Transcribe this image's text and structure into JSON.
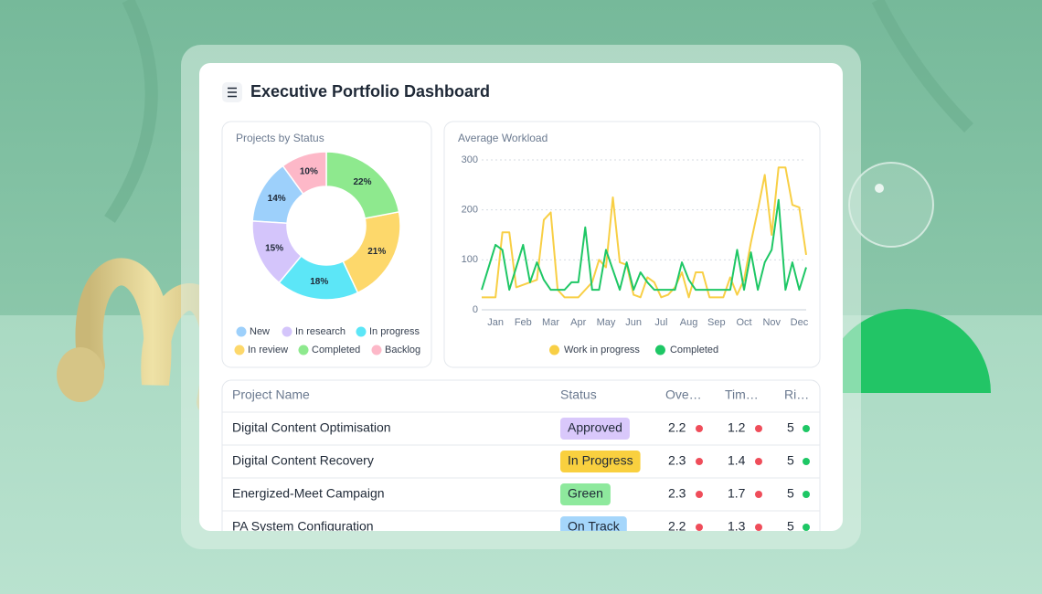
{
  "header": {
    "title": "Executive Portfolio Dashboard"
  },
  "chart_data": [
    {
      "type": "pie",
      "title": "Projects by Status",
      "categories": [
        "New",
        "In research",
        "In progress",
        "In review",
        "Completed",
        "Backlog"
      ],
      "values": [
        14,
        15,
        18,
        21,
        22,
        10
      ],
      "value_labels": [
        "14%",
        "15%",
        "18%",
        "21%",
        "22%",
        "10%"
      ],
      "colors": [
        "#9dd0fb",
        "#d4c5fb",
        "#5ce6f7",
        "#fdd86b",
        "#8ee98e",
        "#fdb8c8"
      ],
      "donut": true,
      "direction": "counterclockwise"
    },
    {
      "type": "line",
      "title": "Average Workload",
      "categories": [
        null,
        null,
        "Jan",
        null,
        null,
        null,
        "Feb",
        null,
        null,
        null,
        "Mar",
        null,
        null,
        null,
        "Apr",
        null,
        null,
        null,
        "May",
        null,
        null,
        null,
        "Jun",
        null,
        null,
        null,
        "Jul",
        null,
        null,
        null,
        "Aug",
        null,
        null,
        null,
        "Sep",
        null,
        null,
        null,
        "Oct",
        null,
        null,
        null,
        "Nov",
        null,
        null,
        null,
        "Dec",
        null
      ],
      "series": [
        {
          "name": "Work in progress",
          "color": "#f8cf45",
          "values": [
            25,
            25,
            25,
            155,
            155,
            45,
            50,
            55,
            60,
            180,
            195,
            40,
            25,
            25,
            25,
            40,
            55,
            100,
            85,
            225,
            95,
            90,
            30,
            25,
            65,
            55,
            25,
            30,
            45,
            75,
            25,
            75,
            75,
            25,
            25,
            25,
            65,
            30,
            60,
            135,
            200,
            270,
            150,
            285,
            285,
            210,
            205,
            110
          ]
        },
        {
          "name": "Completed",
          "color": "#1ec765",
          "values": [
            40,
            85,
            130,
            120,
            40,
            85,
            130,
            55,
            95,
            60,
            40,
            40,
            40,
            55,
            55,
            165,
            40,
            40,
            120,
            80,
            40,
            95,
            40,
            75,
            55,
            40,
            40,
            40,
            40,
            95,
            60,
            40,
            40,
            40,
            40,
            40,
            40,
            120,
            40,
            115,
            40,
            95,
            120,
            220,
            40,
            95,
            40,
            85
          ]
        }
      ],
      "ylim": [
        0,
        300
      ],
      "yticks": [
        0,
        100,
        200,
        300
      ],
      "grid": true,
      "legend": "bottom"
    }
  ],
  "table": {
    "columns": [
      {
        "label": "Project Name"
      },
      {
        "label": "Status"
      },
      {
        "label": "Ove…",
        "dot": "#ef4d5a"
      },
      {
        "label": "Tim…",
        "dot": "#ef4d5a"
      },
      {
        "label": "Ri…",
        "dot": "#1ec765"
      }
    ],
    "rows": [
      [
        "Digital Content Optimisation",
        {
          "text": "Approved",
          "color": "#d9c8fb"
        },
        2.2,
        1.2,
        5
      ],
      [
        "Digital Content Recovery",
        {
          "text": "In Progress",
          "color": "#f9d03f"
        },
        2.3,
        1.4,
        5
      ],
      [
        "Energized-Meet Campaign",
        {
          "text": "Green",
          "color": "#8ee99d"
        },
        2.3,
        1.7,
        5
      ],
      [
        "PA System Configuration",
        {
          "text": "On Track",
          "color": "#a5d6fb"
        },
        2.2,
        1.3,
        5
      ]
    ]
  }
}
